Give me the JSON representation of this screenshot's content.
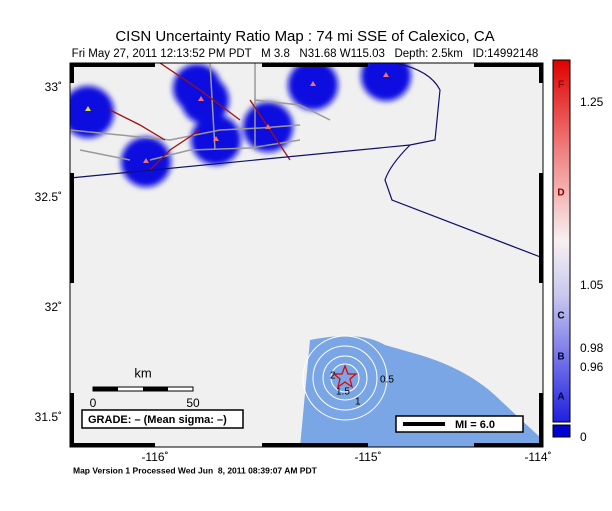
{
  "header": {
    "title": "CISN Uncertainty Ratio Map : 74 mi SSE of Calexico, CA",
    "subtitle": "Fri May 27, 2011 12:13:52 PM PDT   M 3.8   N31.68 W115.03   Depth: 2.5km   ID:14992148"
  },
  "axes": {
    "lat_labels": [
      "33˚",
      "32.5˚",
      "32˚",
      "31.5˚"
    ],
    "lon_labels": [
      "-116˚",
      "-115˚",
      "-114˚"
    ]
  },
  "colorbar": {
    "letters": [
      "F",
      "D",
      "C",
      "B",
      "A"
    ],
    "values": [
      "1.25",
      "1.05",
      "0.98",
      "0.96",
      "0"
    ]
  },
  "scale": {
    "unit": "km",
    "labels": [
      "0",
      "50"
    ]
  },
  "grade": "GRADE: – (Mean sigma: –)",
  "mi": "MI = 6.0",
  "contour_labels": [
    "2",
    "1.5",
    "1",
    "0.5"
  ],
  "footer": "Map Version 1 Processed Wed Jun  8, 2011 08:39:07 AM PDT"
}
